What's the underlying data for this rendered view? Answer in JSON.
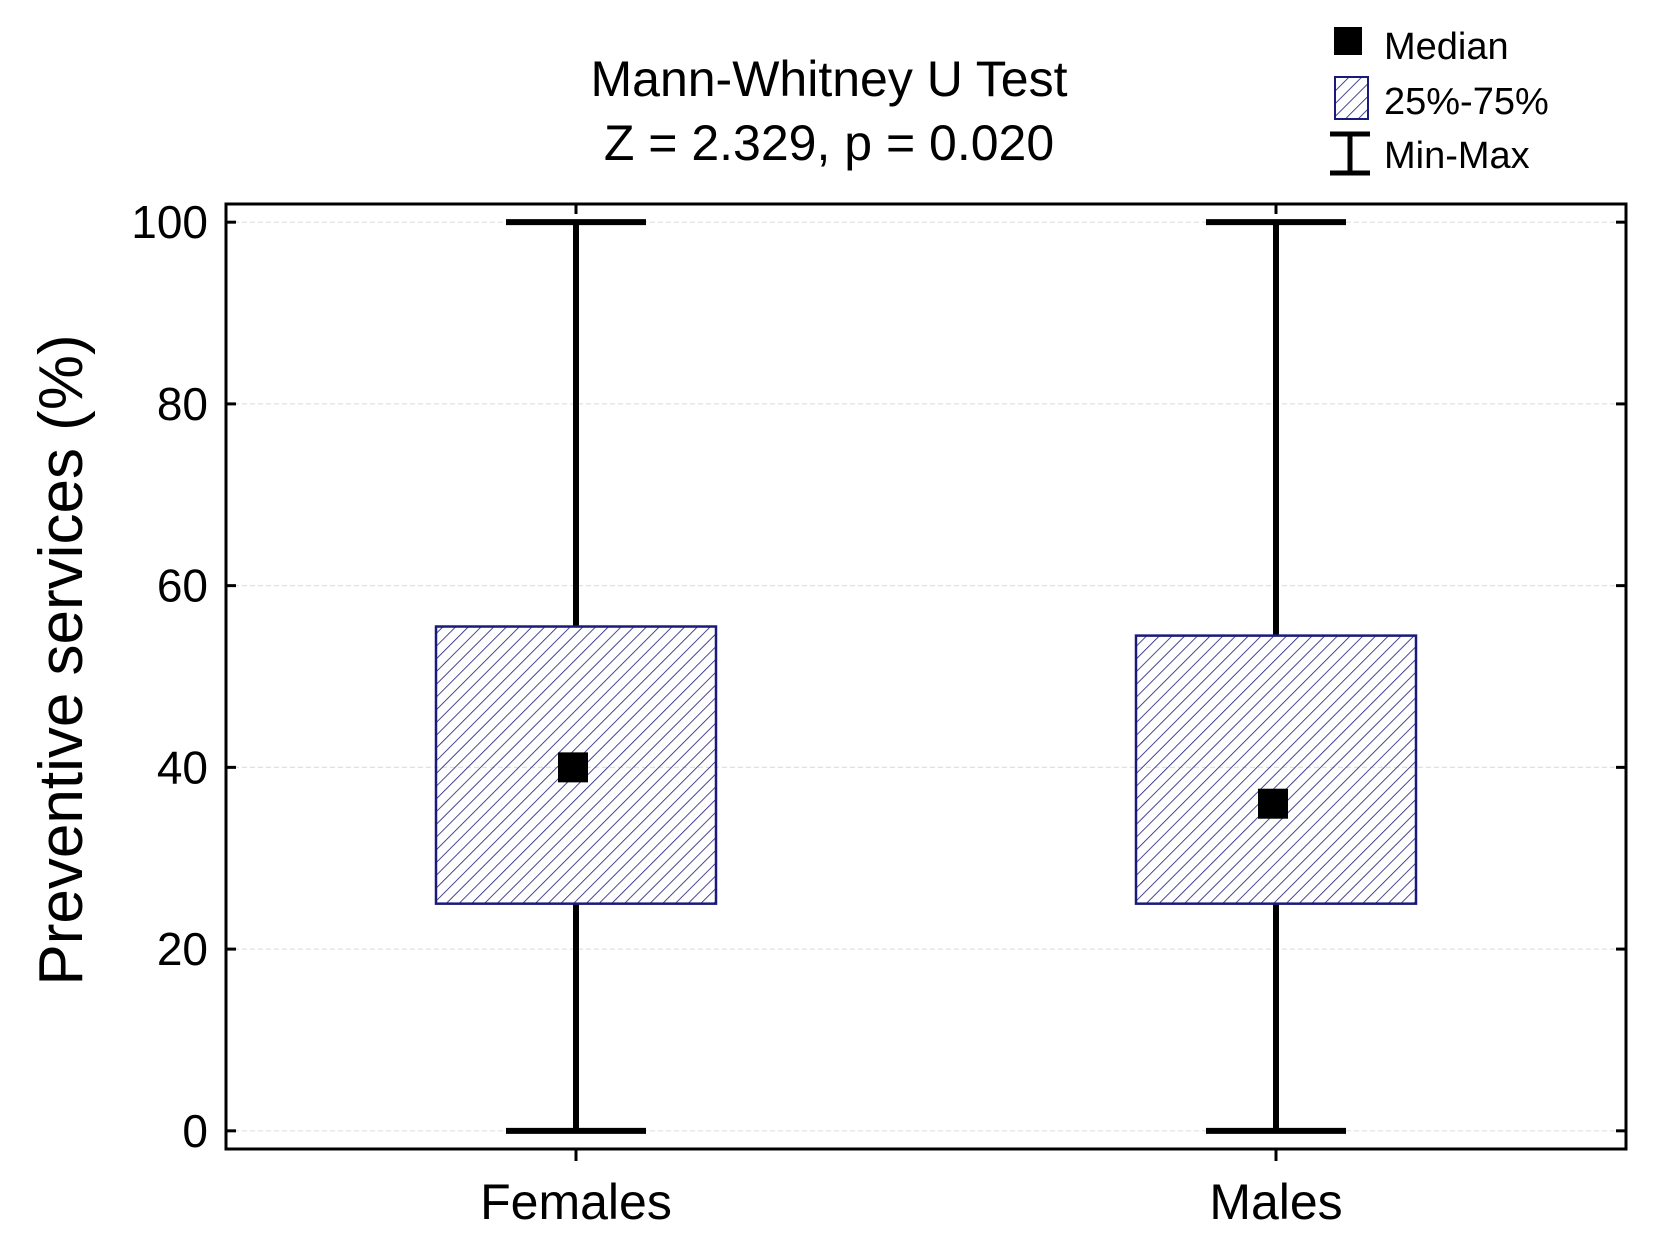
{
  "chart_data": {
    "type": "box",
    "title": "Mann-Whitney U Test",
    "subtitle": "Z = 2.329,  p = 0.020",
    "xlabel": "",
    "ylabel": "Preventive services (%)",
    "ylim": [
      -2,
      102
    ],
    "yticks": [
      0,
      20,
      40,
      60,
      80,
      100
    ],
    "grid": true,
    "legend_position": "top-right",
    "legend": [
      {
        "symbol": "median",
        "label": "Median"
      },
      {
        "symbol": "box",
        "label": "25%-75%"
      },
      {
        "symbol": "whisker",
        "label": "Min-Max"
      }
    ],
    "categories": [
      "Females",
      "Males"
    ],
    "groups": [
      {
        "name": "Females",
        "min": 0,
        "q1": 25,
        "median": 40,
        "q3": 55.5,
        "max": 100
      },
      {
        "name": "Males",
        "min": 0,
        "q1": 25,
        "median": 36,
        "q3": 54.5,
        "max": 100
      }
    ],
    "colors": {
      "box_edge": "#1a1a7a",
      "hatch": "#1a1a7a",
      "whisker": "#000000",
      "median": "#000000",
      "grid": "#e0e0e0"
    }
  }
}
